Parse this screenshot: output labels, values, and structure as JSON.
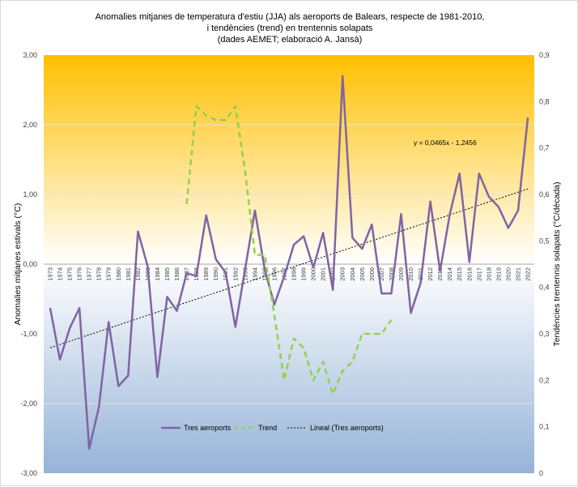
{
  "chart_data": {
    "type": "line",
    "title_lines": [
      "Anomalies mitjanes de temperatura d'estiu (JJA) als aeroports de Balears, respecte de 1981-2010,",
      "i tendències (trend) en trentennis solapats",
      "(dades AEMET; elaboració A. Jansà)"
    ],
    "ylabel": "Anomalies mitjanes estivals (°C)",
    "y2label": "Tendències trentennis solapats (°C/dècada)",
    "ylim": [
      -3,
      3
    ],
    "y2lim": [
      0,
      0.9
    ],
    "y_ticks": [
      "3,00",
      "2,00",
      "1,00",
      "0,00",
      "-1,00",
      "-2,00",
      "-3,00"
    ],
    "y2_ticks": [
      "0,9",
      "0,8",
      "0,7",
      "0,6",
      "0,5",
      "0,4",
      "0,3",
      "0,2",
      "0,1",
      "0"
    ],
    "x": [
      1973,
      1974,
      1975,
      1976,
      1977,
      1978,
      1979,
      1980,
      1981,
      1982,
      1983,
      1984,
      1985,
      1986,
      1987,
      1988,
      1989,
      1990,
      1991,
      1992,
      1993,
      1994,
      1995,
      1996,
      1997,
      1998,
      1999,
      2000,
      2001,
      2002,
      2003,
      2004,
      2005,
      2006,
      2007,
      2008,
      2009,
      2010,
      2011,
      2012,
      2013,
      2014,
      2015,
      2016,
      2017,
      2018,
      2019,
      2020,
      2021,
      2022
    ],
    "series": [
      {
        "name": "Tres aeroports",
        "axis": "left",
        "color": "#8064a2",
        "style": "solid",
        "values": [
          -0.63,
          -1.37,
          -0.92,
          -0.63,
          -2.65,
          -2.05,
          -0.83,
          -1.75,
          -1.6,
          0.47,
          -0.03,
          -1.62,
          -0.47,
          -0.67,
          -0.13,
          -0.17,
          0.7,
          0.07,
          -0.12,
          -0.9,
          -0.07,
          0.77,
          -0.07,
          -0.58,
          -0.18,
          0.28,
          0.4,
          -0.05,
          0.45,
          -0.37,
          2.7,
          0.38,
          0.22,
          0.57,
          -0.42,
          -0.42,
          0.72,
          -0.7,
          -0.27,
          0.9,
          -0.1,
          0.72,
          1.3,
          0.03,
          1.3,
          0.97,
          0.82,
          0.52,
          0.77,
          2.1
        ]
      },
      {
        "name": "Trend",
        "axis": "right",
        "color": "#92d050",
        "style": "dashed",
        "x": [
          1987,
          1988,
          1989,
          1990,
          1991,
          1992,
          1993,
          1994,
          1995,
          1996,
          1997,
          1998,
          1999,
          2000,
          2001,
          2002,
          2003,
          2004,
          2005,
          2006,
          2007,
          2008
        ],
        "values": [
          0.58,
          0.79,
          0.77,
          0.76,
          0.76,
          0.79,
          0.65,
          0.47,
          0.47,
          0.34,
          0.2,
          0.29,
          0.27,
          0.2,
          0.24,
          0.17,
          0.22,
          0.24,
          0.3,
          0.3,
          0.3,
          0.33
        ]
      }
    ],
    "trendline": {
      "name": "Lineal  (Tres aeroports)",
      "equation": "y = 0,0465x - 1,2456",
      "slope": 0.0465,
      "intercept": -1.2456,
      "color": "#000000",
      "style": "dotted"
    },
    "background": {
      "top_color": "#ffc000",
      "mid_color": "#ffffff",
      "bottom_color": "#95b3d7"
    },
    "legend_position": "bottom",
    "grid": true
  }
}
